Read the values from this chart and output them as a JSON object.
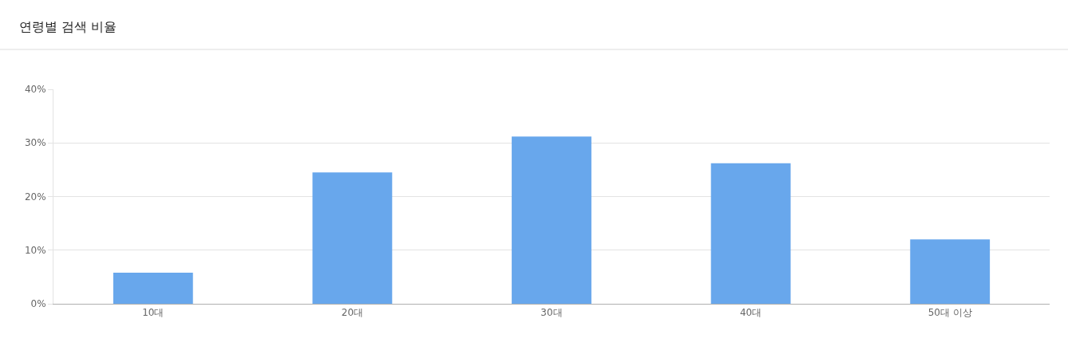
{
  "chart_data": {
    "type": "bar",
    "title": "연령별 검색 비율",
    "categories": [
      "10대",
      "20대",
      "30대",
      "40대",
      "50대 이상"
    ],
    "values": [
      5.8,
      24.5,
      31.2,
      26.2,
      12.0
    ],
    "color": "#68a7ec",
    "ylim": [
      0,
      40
    ],
    "yticks": [
      {
        "value": 0,
        "label": "0%"
      },
      {
        "value": 10,
        "label": "10%"
      },
      {
        "value": 20,
        "label": "20%"
      },
      {
        "value": 30,
        "label": "30%"
      },
      {
        "value": 40,
        "label": "40%"
      }
    ],
    "grid": "y"
  }
}
